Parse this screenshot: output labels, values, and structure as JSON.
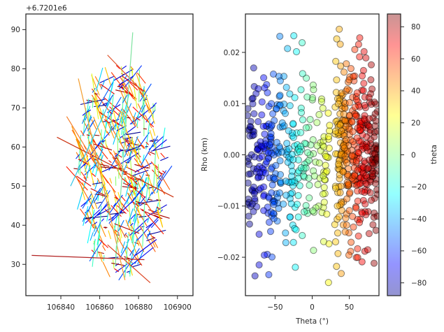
{
  "chart_data": [
    {
      "type": "line-segments",
      "offset_label": "+6.7201e6",
      "xlim": [
        106822,
        106908
      ],
      "ylim": [
        22,
        94
      ],
      "xticks": [
        106840,
        106860,
        106880,
        106900
      ],
      "yticks": [
        30,
        40,
        50,
        60,
        70,
        80,
        90
      ],
      "xlabel": "",
      "ylabel": "",
      "highlighted_segments": [
        {
          "x": [
            106825,
            106883
          ],
          "y": [
            32.3,
            31.2
          ],
          "theta": 88,
          "color": "#b22222"
        },
        {
          "x": [
            106838,
            106898
          ],
          "y": [
            62.5,
            47.2
          ],
          "theta": 76,
          "color": "#cc3311"
        },
        {
          "x": [
            106849,
            106873
          ],
          "y": [
            77.5,
            26.0
          ],
          "theta": 25,
          "color": "#f39c2c"
        },
        {
          "x": [
            106864,
            106882
          ],
          "y": [
            83.5,
            74.2
          ],
          "theta": 63,
          "color": "#e0532a"
        },
        {
          "x": [
            106868,
            106877
          ],
          "y": [
            29.5,
            89.3
          ],
          "theta": -8,
          "color": "#7fe3a0"
        },
        {
          "x": [
            106864,
            106886
          ],
          "y": [
            35.0,
            25.3
          ],
          "theta": 66,
          "color": "#dd4422"
        },
        {
          "x": [
            106843,
            106858
          ],
          "y": [
            67.8,
            55.6
          ],
          "theta": 51,
          "color": "#f57f2a"
        },
        {
          "x": [
            106845,
            106866
          ],
          "y": [
            50.0,
            72.5
          ],
          "theta": -43,
          "color": "#33c6e8"
        }
      ],
      "random_segment_count": 520,
      "point_cloud_ellipse": {
        "cx": 106871,
        "cy": 54,
        "rx": 23,
        "ry": 27
      }
    },
    {
      "type": "scatter",
      "xlabel": "Theta (°)",
      "ylabel": "Rho (km)",
      "xlim": [
        -90,
        90
      ],
      "ylim": [
        -0.0275,
        0.0275
      ],
      "xticks": [
        -50,
        0,
        50
      ],
      "yticks": [
        -0.02,
        -0.01,
        0.0,
        0.01,
        0.02
      ],
      "ytick_labels": [
        "−0.02",
        "−0.01",
        "0.00",
        "0.01",
        "0.02"
      ],
      "xtick_labels": [
        "−50",
        "0",
        "50"
      ],
      "point_count": 700,
      "point_alpha": 0.45,
      "colormap": "jet",
      "colorbar": {
        "label": "theta",
        "range": [
          -88,
          88
        ],
        "ticks": [
          -80,
          -60,
          -40,
          -20,
          0,
          20,
          40,
          60,
          80
        ],
        "tick_labels": [
          "−80",
          "−60",
          "−40",
          "−20",
          "0",
          "20",
          "40",
          "60",
          "80"
        ]
      }
    }
  ]
}
